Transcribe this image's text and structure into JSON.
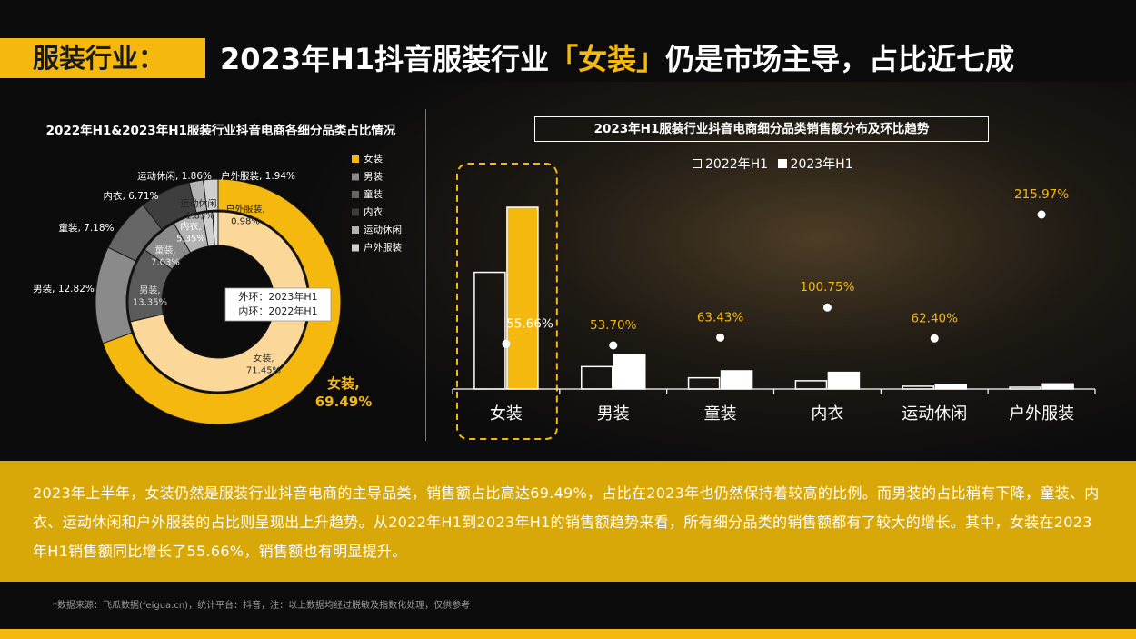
{
  "header": {
    "tag": "服装行业：",
    "headline_pre": "2023年H1抖音服装行业",
    "headline_hl": "「女装」",
    "headline_post": "仍是市场主导，占比近七成"
  },
  "colors": {
    "accent": "#f5b80f",
    "summary_bg": "#d8a708"
  },
  "chart_data": [
    {
      "type": "pie",
      "title": "2022年H1&2023年H1服装行业抖音电商各细分品类占比情况",
      "legend_position": "right",
      "center_note": [
        "外环：2023年H1",
        "内环：2022年H1"
      ],
      "categories": [
        "女装",
        "男装",
        "童装",
        "内衣",
        "运动休闲",
        "户外服装"
      ],
      "colors": [
        "#f5b80f",
        "#8a8a8a",
        "#666666",
        "#3e3e3e",
        "#b3b3b3",
        "#d0d0d0"
      ],
      "series": [
        {
          "name": "外环：2023年H1",
          "values": [
            69.49,
            12.82,
            7.18,
            6.71,
            1.86,
            1.94
          ]
        },
        {
          "name": "内环：2022年H1",
          "values": [
            71.45,
            13.35,
            7.03,
            5.35,
            1.83,
            0.98
          ]
        }
      ],
      "inner_colors": [
        "#fbd89a",
        "#5a5a5a",
        "#8a8a8a",
        "#b3b3b3",
        "#cfcfcf",
        "#e2e2e2"
      ],
      "labels": {
        "outer": [
          "女装,\n69.49%",
          "男装, 12.82%",
          "童装, 7.18%",
          "内衣, 6.71%",
          "运动休闲, 1.86%",
          "户外服装, 1.94%"
        ],
        "inner": [
          "女装,\n71.45%",
          "男装,\n13.35%",
          "童装,\n7.03%",
          "内衣,\n5.35%",
          "运动休闲,\n1.83%",
          "户外服装,\n0.98%"
        ]
      }
    },
    {
      "type": "bar",
      "title": "2023年H1服装行业抖音电商细分品类销售额分布及环比趋势",
      "legend_position": "top",
      "categories": [
        "女装",
        "男装",
        "童装",
        "内衣",
        "运动休闲",
        "户外服装"
      ],
      "series": [
        {
          "name": "2022年H1",
          "values": [
            100,
            19.2,
            9.6,
            7.1,
            2.4,
            1.4
          ]
        },
        {
          "name": "2023年H1",
          "values": [
            155.7,
            29.5,
            15.6,
            14.3,
            3.9,
            4.4
          ]
        }
      ],
      "growth": {
        "values": [
          55.66,
          53.7,
          63.43,
          100.75,
          62.4,
          215.97
        ],
        "labels": [
          "55.66%",
          "53.70%",
          "63.43%",
          "100.75%",
          "62.40%",
          "215.97%"
        ]
      },
      "highlight_category": "女装"
    }
  ],
  "summary": {
    "text": "2023年上半年，女装仍然是服装行业抖音电商的主导品类，销售额占比高达69.49%，占比在2023年也仍然保持着较高的比例。而男装的占比稍有下降，童装、内衣、运动休闲和户外服装的占比则呈现出上升趋势。从2022年H1到2023年H1的销售额趋势来看，所有细分品类的销售额都有了较大的增长。其中，女装在2023年H1销售额同比增长了55.66%，销售额也有明显提升。"
  },
  "footnote": "*数据来源：飞瓜数据(feigua.cn)，统计平台：抖音，注：以上数据均经过脱敏及指数化处理，仅供参考"
}
